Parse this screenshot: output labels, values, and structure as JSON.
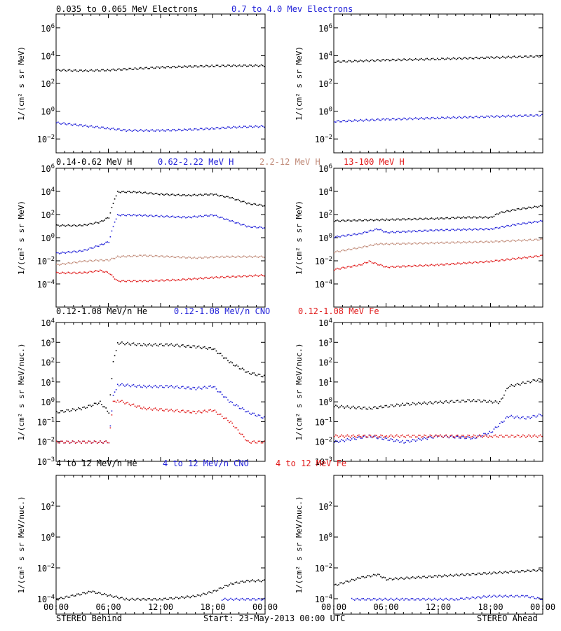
{
  "colors": {
    "black": "#000000",
    "blue": "#1f1fd8",
    "brown": "#c08a78",
    "red": "#e01818"
  },
  "footer": {
    "left": "STEREO Behind",
    "center": "Start: 23-May-2013 00:00 UTC",
    "right": "STEREO Ahead",
    "x_ticks": [
      "00:00",
      "06:00",
      "12:00",
      "18:00",
      "00:00"
    ]
  },
  "rows": [
    {
      "ylabel": "1/(cm² s sr MeV)",
      "legend": [
        {
          "text": "0.035 to 0.065 MeV Electrons",
          "color": "black"
        },
        {
          "text": "0.7 to 4.0 Mev Electrons",
          "color": "blue"
        }
      ]
    },
    {
      "ylabel": "1/(cm² s sr MeV)",
      "legend": [
        {
          "text": "0.14-0.62 MeV H",
          "color": "black"
        },
        {
          "text": "0.62-2.22 MeV H",
          "color": "blue"
        },
        {
          "text": "2.2-12 MeV H",
          "color": "brown"
        },
        {
          "text": "13-100 MeV H",
          "color": "red"
        }
      ]
    },
    {
      "ylabel": "1/(cm² s sr MeV/nuc.)",
      "legend": [
        {
          "text": "0.12-1.08 MeV/n He",
          "color": "black"
        },
        {
          "text": "0.12-1.08 MeV/n CNO",
          "color": "blue"
        },
        {
          "text": "0.12-1.08 MeV Fe",
          "color": "red"
        }
      ]
    },
    {
      "ylabel": "1/(cm² s sr MeV/nuc.)",
      "legend": [
        {
          "text": "4 to 12 MeV/n He",
          "color": "black"
        },
        {
          "text": "4 to 12 MeV/n CNO",
          "color": "blue"
        },
        {
          "text": "4 to 12 MeV Fe",
          "color": "red"
        }
      ]
    }
  ],
  "chart_data": [
    {
      "type": "scatter",
      "spacecraft": "STEREO Behind",
      "row": 0,
      "x_unit": "hours since 23-May-2013 00:00 UTC",
      "xlim": [
        0,
        24
      ],
      "y_scale": "log",
      "ylim_exp": [
        -3,
        7
      ],
      "ytick_exp": [
        -2,
        0,
        2,
        4,
        6
      ],
      "series": [
        {
          "name": "0.035 to 0.065 MeV Electrons",
          "color": "black",
          "points": [
            [
              0,
              3
            ],
            [
              3,
              2.95
            ],
            [
              6,
              3
            ],
            [
              9,
              3.1
            ],
            [
              12,
              3.2
            ],
            [
              15,
              3.25
            ],
            [
              18,
              3.3
            ],
            [
              21,
              3.32
            ],
            [
              24,
              3.32
            ]
          ]
        },
        {
          "name": "0.7 to 4.0 Mev Electrons",
          "color": "blue",
          "points": [
            [
              0,
              -0.8
            ],
            [
              3,
              -1
            ],
            [
              6,
              -1.2
            ],
            [
              8,
              -1.35
            ],
            [
              12,
              -1.35
            ],
            [
              15,
              -1.3
            ],
            [
              18,
              -1.2
            ],
            [
              21,
              -1.1
            ],
            [
              24,
              -1.05
            ]
          ]
        }
      ]
    },
    {
      "type": "scatter",
      "spacecraft": "STEREO Ahead",
      "row": 0,
      "x_unit": "hours since 23-May-2013 00:00 UTC",
      "xlim": [
        0,
        24
      ],
      "y_scale": "log",
      "ylim_exp": [
        -3,
        7
      ],
      "ytick_exp": [
        -2,
        0,
        2,
        4,
        6
      ],
      "series": [
        {
          "name": "0.035 to 0.065 MeV Electrons",
          "color": "black",
          "points": [
            [
              0,
              3.6
            ],
            [
              6,
              3.72
            ],
            [
              12,
              3.8
            ],
            [
              18,
              3.9
            ],
            [
              24,
              4
            ]
          ]
        },
        {
          "name": "0.7 to 4.0 Mev Electrons",
          "color": "blue",
          "points": [
            [
              0,
              -0.7
            ],
            [
              6,
              -0.55
            ],
            [
              12,
              -0.45
            ],
            [
              18,
              -0.35
            ],
            [
              24,
              -0.25
            ]
          ]
        }
      ]
    },
    {
      "type": "scatter",
      "spacecraft": "STEREO Behind",
      "row": 1,
      "x_unit": "hours since 23-May-2013 00:00 UTC",
      "xlim": [
        0,
        24
      ],
      "y_scale": "log",
      "ylim_exp": [
        -6,
        6
      ],
      "ytick_exp": [
        -4,
        -2,
        0,
        2,
        4,
        6
      ],
      "series": [
        {
          "name": "0.14-0.62 MeV H",
          "color": "black",
          "points": [
            [
              0,
              1.1
            ],
            [
              3,
              1.1
            ],
            [
              5,
              1.4
            ],
            [
              6,
              1.8
            ],
            [
              6.5,
              3
            ],
            [
              7,
              4
            ],
            [
              9,
              4
            ],
            [
              12,
              3.8
            ],
            [
              15,
              3.7
            ],
            [
              18,
              3.8
            ],
            [
              20,
              3.5
            ],
            [
              22,
              3
            ],
            [
              24,
              2.8
            ]
          ]
        },
        {
          "name": "0.62-2.22 MeV H",
          "color": "blue",
          "points": [
            [
              0,
              -1.3
            ],
            [
              3,
              -1.1
            ],
            [
              5,
              -0.6
            ],
            [
              6,
              -0.3
            ],
            [
              6.5,
              1
            ],
            [
              7,
              2
            ],
            [
              9,
              2
            ],
            [
              12,
              1.9
            ],
            [
              15,
              1.8
            ],
            [
              18,
              2
            ],
            [
              20,
              1.5
            ],
            [
              22,
              1
            ],
            [
              24,
              0.9
            ]
          ]
        },
        {
          "name": "2.2-12 MeV H",
          "color": "brown",
          "points": [
            [
              0,
              -2.3
            ],
            [
              3,
              -2
            ],
            [
              5,
              -1.9
            ],
            [
              6,
              -1.9
            ],
            [
              7,
              -1.6
            ],
            [
              10,
              -1.5
            ],
            [
              13,
              -1.6
            ],
            [
              16,
              -1.7
            ],
            [
              19,
              -1.6
            ],
            [
              24,
              -1.6
            ]
          ]
        },
        {
          "name": "13-100 MeV H",
          "color": "red",
          "points": [
            [
              0,
              -3
            ],
            [
              3,
              -3
            ],
            [
              5,
              -2.8
            ],
            [
              6,
              -3
            ],
            [
              7,
              -3.7
            ],
            [
              10,
              -3.7
            ],
            [
              14,
              -3.6
            ],
            [
              18,
              -3.4
            ],
            [
              24,
              -3.2
            ]
          ]
        }
      ]
    },
    {
      "type": "scatter",
      "spacecraft": "STEREO Ahead",
      "row": 1,
      "x_unit": "hours since 23-May-2013 00:00 UTC",
      "xlim": [
        0,
        24
      ],
      "y_scale": "log",
      "ylim_exp": [
        -6,
        6
      ],
      "ytick_exp": [
        -4,
        -2,
        0,
        2,
        4,
        6
      ],
      "series": [
        {
          "name": "0.14-0.62 MeV H",
          "color": "black",
          "points": [
            [
              0,
              1.5
            ],
            [
              6,
              1.6
            ],
            [
              12,
              1.7
            ],
            [
              15,
              1.8
            ],
            [
              18,
              1.8
            ],
            [
              19,
              2.2
            ],
            [
              21,
              2.5
            ],
            [
              24,
              2.8
            ]
          ]
        },
        {
          "name": "0.62-2.22 MeV H",
          "color": "blue",
          "points": [
            [
              0,
              0.1
            ],
            [
              3,
              0.4
            ],
            [
              5,
              0.8
            ],
            [
              6,
              0.5
            ],
            [
              9,
              0.6
            ],
            [
              12,
              0.7
            ],
            [
              18,
              0.8
            ],
            [
              21,
              1.2
            ],
            [
              24,
              1.5
            ]
          ]
        },
        {
          "name": "2.2-12 MeV H",
          "color": "brown",
          "points": [
            [
              0,
              -1.2
            ],
            [
              3,
              -0.8
            ],
            [
              5,
              -0.5
            ],
            [
              6,
              -0.5
            ],
            [
              12,
              -0.4
            ],
            [
              18,
              -0.3
            ],
            [
              24,
              -0.1
            ]
          ]
        },
        {
          "name": "13-100 MeV H",
          "color": "red",
          "points": [
            [
              0,
              -2.7
            ],
            [
              3,
              -2.3
            ],
            [
              4,
              -2
            ],
            [
              6,
              -2.5
            ],
            [
              12,
              -2.3
            ],
            [
              18,
              -2
            ],
            [
              24,
              -1.5
            ]
          ]
        }
      ]
    },
    {
      "type": "scatter",
      "spacecraft": "STEREO Behind",
      "row": 2,
      "x_unit": "hours since 23-May-2013 00:00 UTC",
      "xlim": [
        0,
        24
      ],
      "y_scale": "log",
      "ylim_exp": [
        -3,
        4
      ],
      "ytick_exp": [
        -3,
        -2,
        -1,
        0,
        1,
        2,
        3,
        4
      ],
      "series": [
        {
          "name": "0.12-1.08 MeV/n He",
          "color": "black",
          "points": [
            [
              0,
              -0.5
            ],
            [
              3,
              -0.3
            ],
            [
              5,
              0
            ],
            [
              6,
              -0.5
            ],
            [
              6.5,
              2
            ],
            [
              7,
              3
            ],
            [
              10,
              2.9
            ],
            [
              13,
              2.9
            ],
            [
              16,
              2.8
            ],
            [
              18,
              2.7
            ],
            [
              20,
              2
            ],
            [
              22,
              1.5
            ],
            [
              24,
              1.3
            ]
          ]
        },
        {
          "name": "0.12-1.08 MeV/n CNO",
          "color": "blue",
          "points": [
            [
              0,
              -2
            ],
            [
              3,
              -2
            ],
            [
              5,
              -2
            ],
            [
              6,
              -2
            ],
            [
              6.5,
              0.3
            ],
            [
              7,
              0.9
            ],
            [
              10,
              0.8
            ],
            [
              13,
              0.8
            ],
            [
              16,
              0.7
            ],
            [
              18,
              0.8
            ],
            [
              20,
              0
            ],
            [
              22,
              -0.5
            ],
            [
              24,
              -0.8
            ]
          ]
        },
        {
          "name": "0.12-1.08 MeV Fe",
          "color": "red",
          "points": [
            [
              0,
              -2
            ],
            [
              3,
              -2
            ],
            [
              5,
              -2
            ],
            [
              6,
              -2
            ],
            [
              6.5,
              0
            ],
            [
              7,
              0.1
            ],
            [
              10,
              -0.3
            ],
            [
              13,
              -0.4
            ],
            [
              16,
              -0.5
            ],
            [
              18,
              -0.4
            ],
            [
              20,
              -1
            ],
            [
              22,
              -2
            ],
            [
              24,
              -2
            ]
          ]
        }
      ]
    },
    {
      "type": "scatter",
      "spacecraft": "STEREO Ahead",
      "row": 2,
      "x_unit": "hours since 23-May-2013 00:00 UTC",
      "xlim": [
        0,
        24
      ],
      "y_scale": "log",
      "ylim_exp": [
        -3,
        4
      ],
      "ytick_exp": [
        -3,
        -2,
        -1,
        0,
        1,
        2,
        3,
        4
      ],
      "series": [
        {
          "name": "0.12-1.08 MeV/n He",
          "color": "black",
          "points": [
            [
              0,
              -0.2
            ],
            [
              4,
              -0.3
            ],
            [
              8,
              -0.1
            ],
            [
              12,
              0
            ],
            [
              16,
              0.1
            ],
            [
              19,
              0
            ],
            [
              20,
              0.8
            ],
            [
              22,
              1
            ],
            [
              24,
              1.2
            ]
          ]
        },
        {
          "name": "0.12-1.08 MeV/n CNO",
          "color": "blue",
          "points": [
            [
              0,
              -2
            ],
            [
              4,
              -1.7
            ],
            [
              8,
              -2
            ],
            [
              12,
              -1.7
            ],
            [
              16,
              -1.8
            ],
            [
              18,
              -1.5
            ],
            [
              20,
              -0.7
            ],
            [
              22,
              -0.8
            ],
            [
              24,
              -0.6
            ]
          ]
        },
        {
          "name": "0.12-1.08 MeV Fe",
          "color": "red",
          "points": [
            [
              0,
              -1.7
            ],
            [
              6,
              -1.7
            ],
            [
              12,
              -1.7
            ],
            [
              18,
              -1.7
            ],
            [
              24,
              -1.7
            ]
          ]
        }
      ]
    },
    {
      "type": "scatter",
      "spacecraft": "STEREO Behind",
      "row": 3,
      "x_unit": "hours since 23-May-2013 00:00 UTC",
      "xlim": [
        0,
        24
      ],
      "y_scale": "log",
      "ylim_exp": [
        -5,
        4
      ],
      "ytick_exp": [
        -4,
        -2,
        0,
        2
      ],
      "series": [
        {
          "name": "4 to 12 MeV/n He",
          "color": "black",
          "points": [
            [
              0,
              -4
            ],
            [
              4,
              -3.5
            ],
            [
              8,
              -4
            ],
            [
              12,
              -4
            ],
            [
              16,
              -3.8
            ],
            [
              18,
              -3.5
            ],
            [
              20,
              -3
            ],
            [
              22,
              -2.8
            ],
            [
              24,
              -2.8
            ]
          ]
        },
        {
          "name": "4 to 12 MeV/n CNO",
          "color": "blue",
          "points": [
            [
              19,
              -4
            ],
            [
              24,
              -4
            ]
          ]
        },
        {
          "name": "4 to 12 MeV Fe",
          "color": "red",
          "points": []
        }
      ]
    },
    {
      "type": "scatter",
      "spacecraft": "STEREO Ahead",
      "row": 3,
      "x_unit": "hours since 23-May-2013 00:00 UTC",
      "xlim": [
        0,
        24
      ],
      "y_scale": "log",
      "ylim_exp": [
        -5,
        4
      ],
      "ytick_exp": [
        -4,
        -2,
        0,
        2
      ],
      "series": [
        {
          "name": "4 to 12 MeV/n He",
          "color": "black",
          "points": [
            [
              0,
              -3.1
            ],
            [
              3,
              -2.6
            ],
            [
              5,
              -2.4
            ],
            [
              6,
              -2.7
            ],
            [
              12,
              -2.5
            ],
            [
              18,
              -2.3
            ],
            [
              24,
              -2.1
            ]
          ]
        },
        {
          "name": "4 to 12 MeV/n CNO",
          "color": "blue",
          "points": [
            [
              2,
              -4
            ],
            [
              8,
              -4
            ],
            [
              14,
              -4
            ],
            [
              18,
              -3.8
            ],
            [
              22,
              -3.8
            ],
            [
              24,
              -4
            ]
          ]
        },
        {
          "name": "4 to 12 MeV Fe",
          "color": "red",
          "points": []
        }
      ]
    }
  ]
}
